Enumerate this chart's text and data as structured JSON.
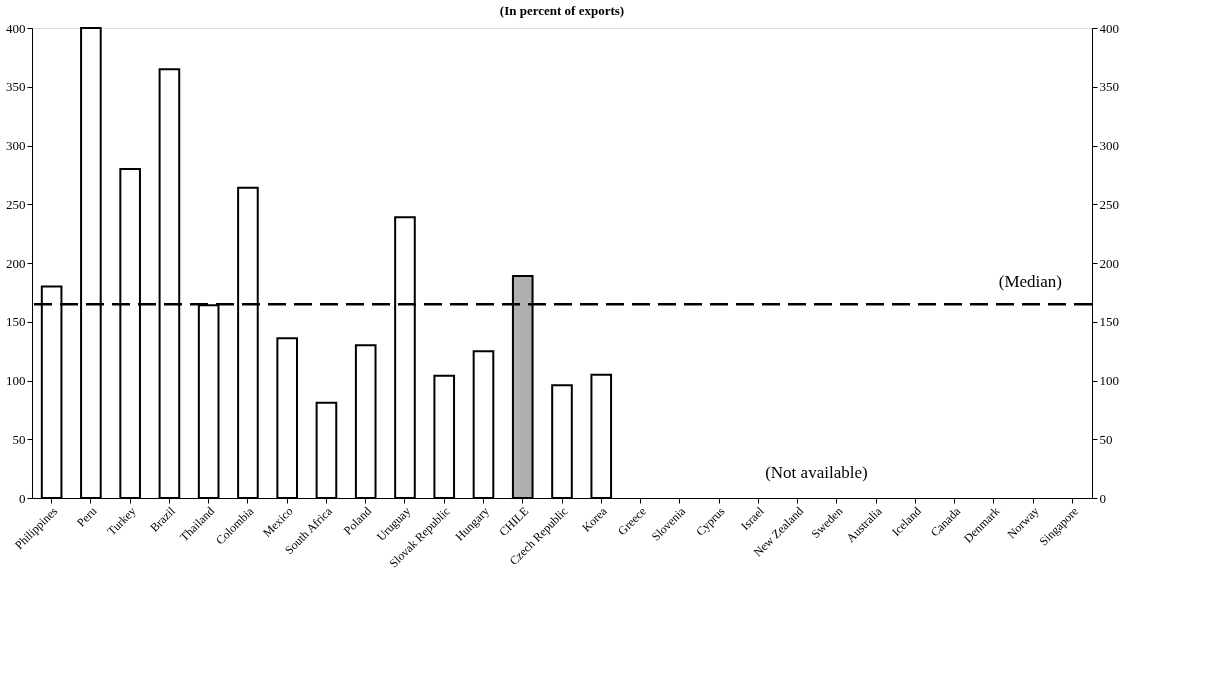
{
  "chart_data": {
    "type": "bar",
    "title": "(In percent of exports)",
    "categories": [
      "Philippines",
      "Peru",
      "Turkey",
      "Brazil",
      "Thailand",
      "Colombia",
      "Mexico",
      "South Africa",
      "Poland",
      "Uruguay",
      "Slovak Republic",
      "Hungary",
      "CHILE",
      "Czech Republic",
      "Korea",
      "Greece",
      "Slovenia",
      "Cyprus",
      "Israel",
      "New Zealand",
      "Sweden",
      "Australia",
      "Iceland",
      "Canada",
      "Denmark",
      "Norway",
      "Singapore"
    ],
    "values": [
      180,
      400,
      280,
      365,
      164,
      264,
      136,
      81,
      130,
      239,
      104,
      125,
      189,
      96,
      105,
      null,
      null,
      null,
      null,
      null,
      null,
      null,
      null,
      null,
      null,
      null,
      null
    ],
    "colors": [
      "#ffffff",
      "#ffffff",
      "#ffffff",
      "#ffffff",
      "#ffffff",
      "#ffffff",
      "#ffffff",
      "#ffffff",
      "#ffffff",
      "#ffffff",
      "#ffffff",
      "#ffffff",
      "#b0b0b0",
      "#ffffff",
      "#ffffff",
      "#ffffff",
      "#ffffff",
      "#ffffff",
      "#ffffff",
      "#ffffff",
      "#ffffff",
      "#ffffff",
      "#ffffff",
      "#ffffff",
      "#ffffff",
      "#ffffff",
      "#ffffff"
    ],
    "ylim": [
      0,
      400
    ],
    "yticks": [
      0,
      50,
      100,
      150,
      200,
      250,
      300,
      350,
      400
    ],
    "y2lim": [
      0,
      400
    ],
    "y2ticks": [
      0,
      50,
      100,
      150,
      200,
      250,
      300,
      350,
      400
    ],
    "ref_lines": [
      {
        "axis": "y",
        "value": 165,
        "label": "(Median)",
        "line_style": "dashed",
        "color": "#000000"
      }
    ],
    "annotations": [
      "(Not available)"
    ],
    "grid": false
  }
}
